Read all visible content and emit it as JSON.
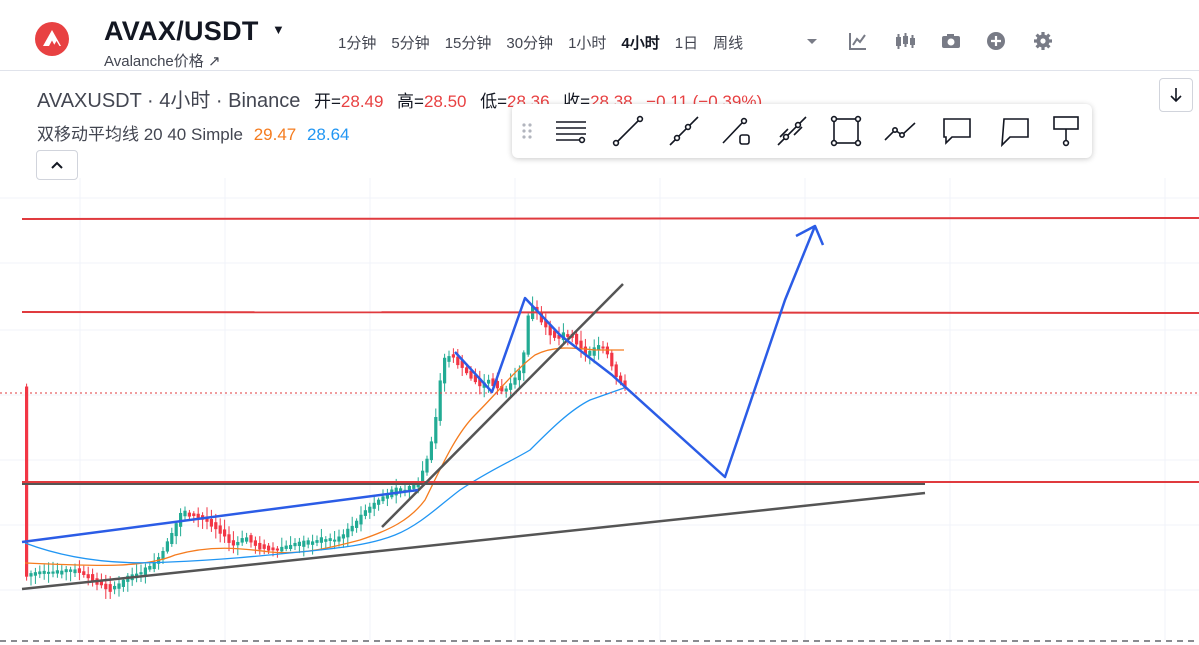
{
  "header": {
    "symbol": "AVAX/USDT",
    "subtitle": "Avalanche价格 ↗",
    "intervals": [
      "1分钟",
      "5分钟",
      "15分钟",
      "30分钟",
      "1小时",
      "4小时",
      "1日",
      "周线"
    ],
    "active_interval": "4小时",
    "icons": [
      "chevron-down-icon",
      "indicators-icon",
      "candle-style-icon",
      "camera-icon",
      "add-icon",
      "gear-icon"
    ]
  },
  "legend": {
    "title": "AVAXUSDT · 4小时 · Binance",
    "open_label": "开=",
    "open": "28.49",
    "high_label": "高=",
    "high": "28.50",
    "low_label": "低=",
    "low": "28.36",
    "close_label": "收=",
    "close": "28.38",
    "change": "−0.11 (−0.39%)",
    "indicator_name": "双移动平均线 20 40 Simple",
    "ma20": "29.47",
    "ma40": "28.64"
  },
  "colors": {
    "up": "#22ab94",
    "down": "#f23645",
    "ma20": "#f57c1f",
    "ma40": "#2196f3",
    "drawing_blue": "#2b5ce6",
    "drawing_red": "#e03a3e",
    "drawing_dark": "#555555"
  },
  "drawing_toolbar": {
    "tools": [
      "drag-handle-icon",
      "horizontal-lines-icon",
      "trend-line-icon",
      "ray-icon",
      "extended-line-icon",
      "parallel-channel-icon",
      "rectangle-icon",
      "path-icon",
      "callout-icon",
      "comment-icon",
      "price-label-icon"
    ]
  },
  "chart_data": {
    "type": "candlestick",
    "symbol": "AVAXUSDT",
    "interval": "4小时",
    "exchange": "Binance",
    "last_candle": {
      "open": 28.49,
      "high": 28.5,
      "low": 28.36,
      "close": 28.38
    },
    "moving_averages": [
      {
        "period": 20,
        "type": "Simple",
        "value": 29.47,
        "color": "#f57c1f"
      },
      {
        "period": 40,
        "type": "Simple",
        "value": 28.64,
        "color": "#2196f3"
      }
    ],
    "grid": true
  }
}
